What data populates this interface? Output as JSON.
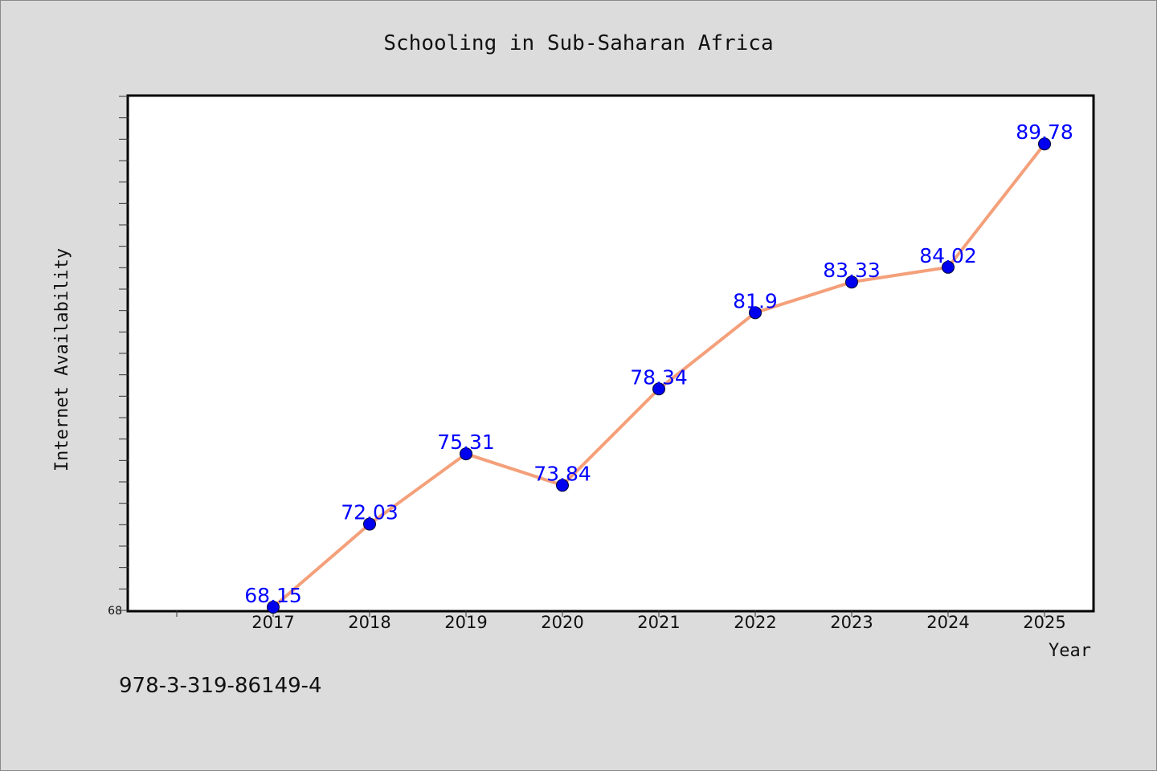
{
  "chart_data": {
    "type": "line",
    "title": "Schooling in Sub-Saharan Africa",
    "xlabel": "Year",
    "ylabel": "Internet Availability",
    "categories": [
      "2017",
      "2018",
      "2019",
      "2020",
      "2021",
      "2022",
      "2023",
      "2024",
      "2025"
    ],
    "series": [
      {
        "values": [
          68.15,
          72.03,
          75.31,
          73.84,
          78.34,
          81.9,
          83.33,
          84.02,
          89.78
        ],
        "labels": [
          "68.15",
          "72.03",
          "75.31",
          "73.84",
          "78.34",
          "81.9",
          "83.33",
          "84.02",
          "89.78"
        ]
      }
    ],
    "ylim": [
      68,
      92
    ],
    "y_tick_labels": [
      "68"
    ],
    "grid": false,
    "line_color": "#f4a07a",
    "marker_color": "#0000ee",
    "label_color": "#0000ff"
  },
  "footer": {
    "isbn": "978-3-319-86149-4"
  }
}
